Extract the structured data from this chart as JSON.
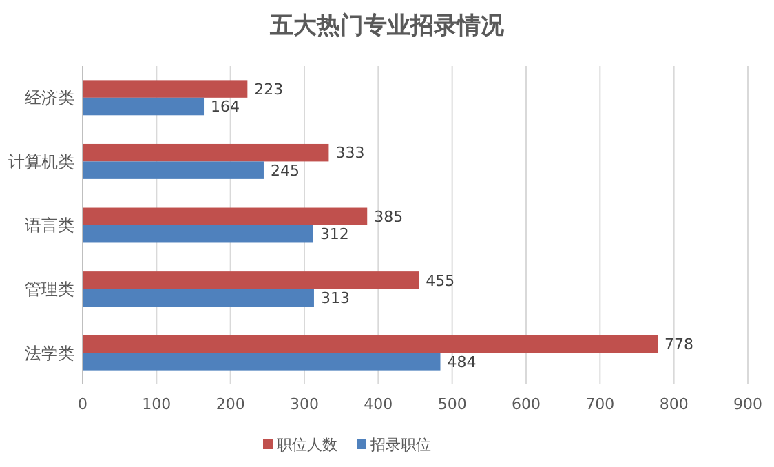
{
  "chart_data": {
    "type": "bar",
    "orientation": "horizontal",
    "title": "五大热门专业招录情况",
    "categories": [
      "经济类",
      "计算机类",
      "语言类",
      "管理类",
      "法学类"
    ],
    "series": [
      {
        "name": "职位人数",
        "color": "#c0504d",
        "values": [
          223,
          333,
          385,
          455,
          778
        ]
      },
      {
        "name": "招录职位",
        "color": "#4f81bd",
        "values": [
          164,
          245,
          312,
          313,
          484
        ]
      }
    ],
    "xlim": [
      0,
      900
    ],
    "xticks": [
      0,
      100,
      200,
      300,
      400,
      500,
      600,
      700,
      800,
      900
    ],
    "grid": "x",
    "legend": "bottom",
    "data_labels": true
  }
}
